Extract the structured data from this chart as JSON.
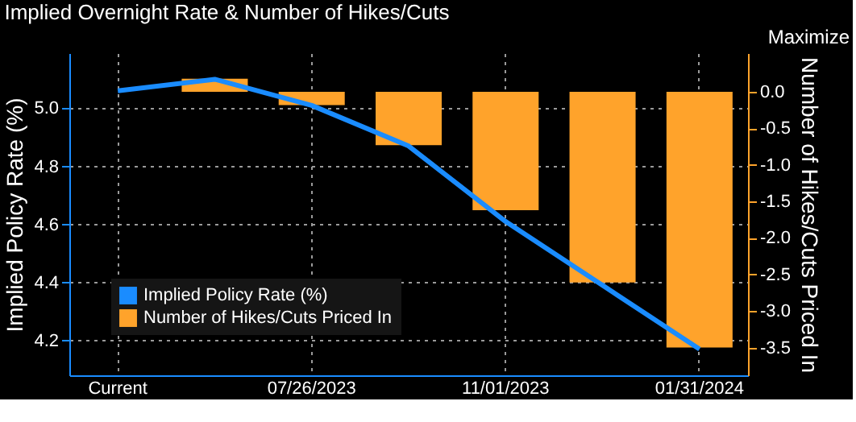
{
  "chart_data": {
    "type": "bar",
    "title": "Implied Overnight Rate & Number of Hikes/Cuts",
    "categories": [
      "Current",
      null,
      "07/26/2023",
      null,
      "11/01/2023",
      null,
      "01/31/2024"
    ],
    "series": [
      {
        "name": "Implied Policy Rate (%)",
        "type": "line",
        "color": "#1a8cff",
        "values": [
          5.06,
          5.1,
          5.01,
          4.87,
          4.61,
          4.39,
          4.17
        ]
      },
      {
        "name": "Number of Hikes/Cuts Priced In",
        "axis": "y2",
        "color": "#ffa32b",
        "values": [
          0.0,
          0.18,
          -0.18,
          -0.73,
          -1.62,
          -2.61,
          -3.5
        ]
      }
    ],
    "ylabel": "Implied Policy Rate (%)",
    "y2label": "Number of Hikes/Cuts Priced In",
    "ylim": [
      4.08,
      5.19
    ],
    "yticks": [
      4.2,
      4.4,
      4.6,
      4.8,
      {
        "value": 5,
        "label": "5.0"
      }
    ],
    "y2lim": [
      -3.88,
      0.53
    ],
    "y2ticks": [
      {
        "value": 0,
        "label": "0.0"
      },
      -0.5,
      {
        "value": -1,
        "label": "-1.0"
      },
      -1.5,
      {
        "value": -2,
        "label": "-2.0"
      },
      -2.5,
      {
        "value": -3,
        "label": "-3.0"
      },
      -3.5
    ],
    "grid": true,
    "legend": "bottom left",
    "marker": "none",
    "annotations": [
      "Maximize"
    ]
  }
}
